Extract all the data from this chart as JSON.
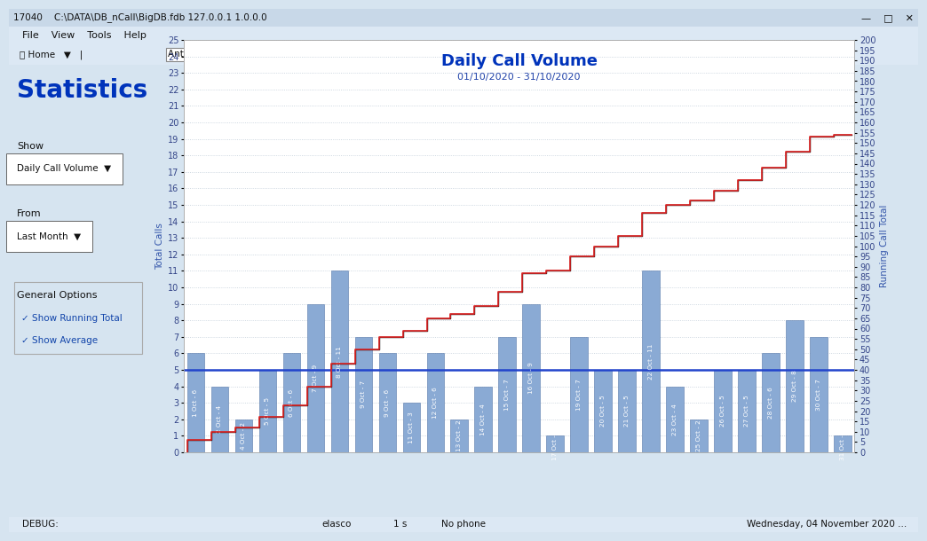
{
  "title": "Daily Call Volume",
  "subtitle": "01/10/2020 - 31/10/2020",
  "ylabel_left": "Total Calls",
  "ylabel_right": "Running Call Total",
  "ylim_left": [
    0,
    25
  ],
  "ylim_right": [
    0,
    200
  ],
  "bar_labels": [
    "1 Oct - 6",
    "2 Oct - 4",
    "4 Oct - 2",
    "5 Oct - 5",
    "6 Oct - 6",
    "7 Oct - 9",
    "8 Oct - 11",
    "9 Oct - 7",
    "9 Oct - 6",
    "11 Oct - 3",
    "12 Oct - 6",
    "13 Oct - 2",
    "14 Oct - 4",
    "15 Oct - 7",
    "16 Oct - 9",
    "17 Oct - 1",
    "19 Oct - 7",
    "20 Oct - 5",
    "21 Oct - 5",
    "22 Oct - 11",
    "23 Oct - 4",
    "25 Oct - 2",
    "26 Oct - 5",
    "27 Oct - 5",
    "28 Oct - 6",
    "29 Oct - 8",
    "30 Oct - 7",
    "31 Oct - 1"
  ],
  "bar_values": [
    6,
    4,
    2,
    5,
    6,
    9,
    11,
    7,
    6,
    3,
    6,
    2,
    4,
    7,
    9,
    1,
    7,
    5,
    5,
    11,
    4,
    2,
    5,
    5,
    6,
    8,
    7,
    1
  ],
  "bar_color": "#8aaad4",
  "bar_edge_color": "#5577aa",
  "running_total_color": "#dd2222",
  "black_line_color": "#111111",
  "average_line_color": "#2244cc",
  "average_value": 5.0,
  "bg_color": "#d6e4f0",
  "plot_bg_color": "#ffffff",
  "grid_color": "#c0ccd8",
  "title_color": "#0033bb",
  "subtitle_color": "#2244aa",
  "axis_label_color": "#3355aa",
  "tick_label_color": "#334488",
  "titlebar_bg": "#c8d8e8",
  "chrome_bg": "#dce8f4",
  "left_panel_bg": "#d6e4f0"
}
